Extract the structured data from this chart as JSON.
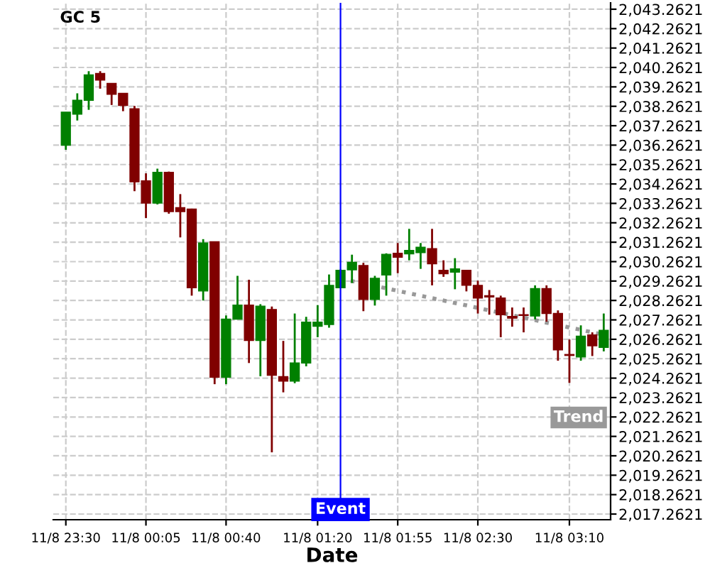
{
  "chart_data": {
    "type": "candlestick",
    "title": "GC 5",
    "xlabel": "Date",
    "categories": [
      "11/8 23:30",
      null,
      null,
      null,
      null,
      null,
      null,
      "11/8 00:05",
      null,
      null,
      null,
      null,
      null,
      null,
      "11/8 00:40",
      null,
      null,
      null,
      null,
      null,
      null,
      null,
      "11/8 01:20",
      null,
      null,
      null,
      null,
      null,
      null,
      "11/8 01:55",
      null,
      null,
      null,
      null,
      null,
      null,
      "11/8 02:30",
      null,
      null,
      null,
      null,
      null,
      null,
      null,
      "11/8 03:10",
      null,
      null,
      null
    ],
    "ohlc": [
      [
        2036.26,
        2037.96,
        2036.02,
        2037.96
      ],
      [
        2037.86,
        2038.93,
        2037.53,
        2038.57
      ],
      [
        2038.57,
        2040.07,
        2038.08,
        2039.88
      ],
      [
        2039.95,
        2040.07,
        2039.17,
        2039.61
      ],
      [
        2039.44,
        2039.44,
        2038.33,
        2038.88
      ],
      [
        2038.93,
        2038.93,
        2038.01,
        2038.3
      ],
      [
        2038.13,
        2038.28,
        2033.89,
        2034.37
      ],
      [
        2034.42,
        2034.81,
        2032.51,
        2033.28
      ],
      [
        2033.28,
        2035.05,
        2033.21,
        2034.86
      ],
      [
        2034.86,
        2034.9,
        2032.73,
        2032.84
      ],
      [
        2033.04,
        2033.74,
        2031.51,
        2032.84
      ],
      [
        2032.97,
        2032.99,
        2028.51,
        2028.92
      ],
      [
        2028.75,
        2031.42,
        2028.26,
        2031.22
      ],
      [
        2031.29,
        2031.29,
        2023.95,
        2024.31
      ],
      [
        2024.31,
        2027.49,
        2023.95,
        2027.3
      ],
      [
        2027.3,
        2029.53,
        2027.3,
        2028.02
      ],
      [
        2028.02,
        2029.33,
        2025.04,
        2026.2
      ],
      [
        2026.2,
        2028.07,
        2024.36,
        2027.97
      ],
      [
        2027.8,
        2027.95,
        2020.44,
        2024.41
      ],
      [
        2024.34,
        2026.18,
        2023.53,
        2024.11
      ],
      [
        2024.11,
        2027.59,
        2024.0,
        2025.04
      ],
      [
        2025.04,
        2027.42,
        2024.87,
        2027.15
      ],
      [
        2026.93,
        2028.02,
        2026.37,
        2027.15
      ],
      [
        2027.02,
        2029.6,
        2026.86,
        2029.04
      ],
      [
        2028.92,
        2029.86,
        2028.9,
        2029.82
      ],
      [
        2029.84,
        2030.62,
        2029.16,
        2030.23
      ],
      [
        2030.06,
        2030.2,
        2027.71,
        2028.31
      ],
      [
        2028.31,
        2029.53,
        2028.0,
        2029.4
      ],
      [
        2029.57,
        2030.69,
        2028.51,
        2030.64
      ],
      [
        2030.69,
        2031.22,
        2029.67,
        2030.49
      ],
      [
        2030.66,
        2031.95,
        2030.33,
        2030.84
      ],
      [
        2030.73,
        2031.22,
        2029.89,
        2031.0
      ],
      [
        2030.93,
        2031.95,
        2029.04,
        2030.15
      ],
      [
        2029.82,
        2030.33,
        2029.48,
        2029.64
      ],
      [
        2029.72,
        2030.44,
        2028.84,
        2029.89
      ],
      [
        2029.82,
        2029.82,
        2028.73,
        2029.04
      ],
      [
        2029.04,
        2029.28,
        2027.59,
        2028.39
      ],
      [
        2028.51,
        2028.8,
        2027.53,
        2028.44
      ],
      [
        2028.39,
        2028.51,
        2026.37,
        2027.53
      ],
      [
        2027.44,
        2027.9,
        2026.91,
        2027.35
      ],
      [
        2027.53,
        2027.9,
        2026.62,
        2027.49
      ],
      [
        2027.46,
        2029.04,
        2027.29,
        2028.87
      ],
      [
        2028.87,
        2029.04,
        2027.17,
        2027.59
      ],
      [
        2027.59,
        2027.75,
        2025.16,
        2025.72
      ],
      [
        2025.48,
        2026.25,
        2024.02,
        2025.43
      ],
      [
        2025.35,
        2026.98,
        2025.16,
        2026.42
      ],
      [
        2026.49,
        2026.62,
        2025.4,
        2025.93
      ],
      [
        2025.84,
        2027.59,
        2025.64,
        2026.73
      ]
    ],
    "colors": [
      "#008000",
      "#008000",
      "#008000",
      "#800000",
      "#800000",
      "#800000",
      "#800000",
      "#800000",
      "#008000",
      "#800000",
      "#800000",
      "#800000",
      "#008000",
      "#800000",
      "#008000",
      "#008000",
      "#800000",
      "#008000",
      "#800000",
      "#800000",
      "#008000",
      "#008000",
      "#008000",
      "#008000",
      "#008000",
      "#008000",
      "#800000",
      "#008000",
      "#008000",
      "#800000",
      "#008000",
      "#008000",
      "#800000",
      "#800000",
      "#008000",
      "#800000",
      "#800000",
      "#800000",
      "#800000",
      "#800000",
      "#800000",
      "#008000",
      "#800000",
      "#800000",
      "#800000",
      "#008000",
      "#800000",
      "#008000"
    ],
    "series": [
      {
        "type": "line",
        "name": "Trend",
        "values": [
          null,
          null,
          null,
          null,
          null,
          null,
          null,
          null,
          null,
          null,
          null,
          null,
          null,
          null,
          null,
          null,
          null,
          null,
          null,
          null,
          null,
          null,
          null,
          null,
          2029.39,
          2029.26,
          2029.14,
          2029.01,
          2028.89,
          2028.76,
          2028.63,
          2028.51,
          2028.38,
          2028.26,
          2028.13,
          2028.01,
          2027.88,
          2027.75,
          2027.63,
          2027.5,
          2027.38,
          2027.25,
          2027.12,
          2027.0,
          2026.87,
          2026.75,
          2026.62,
          2026.5
        ],
        "color": "#999999",
        "line_style": "dotted"
      }
    ],
    "annotations": [
      "Event"
    ],
    "ylim": [
      2016.97,
      2043.59
    ],
    "yticks": [
      {
        "value": 2017.2621,
        "label": "2,017.2621"
      },
      {
        "value": 2018.2621,
        "label": "2,018.2621"
      },
      {
        "value": 2019.2621,
        "label": "2,019.2621"
      },
      {
        "value": 2020.2621,
        "label": "2,020.2621"
      },
      {
        "value": 2021.2621,
        "label": "2,021.2621"
      },
      {
        "value": 2022.2621,
        "label": "2,022.2621"
      },
      {
        "value": 2023.2621,
        "label": "2,023.2621"
      },
      {
        "value": 2024.2621,
        "label": "2,024.2621"
      },
      {
        "value": 2025.2621,
        "label": "2,025.2621"
      },
      {
        "value": 2026.2621,
        "label": "2,026.2621"
      },
      {
        "value": 2027.2621,
        "label": "2,027.2621"
      },
      {
        "value": 2028.2621,
        "label": "2,028.2621"
      },
      {
        "value": 2029.2621,
        "label": "2,029.2621"
      },
      {
        "value": 2030.2621,
        "label": "2,030.2621"
      },
      {
        "value": 2031.2621,
        "label": "2,031.2621"
      },
      {
        "value": 2032.2621,
        "label": "2,032.2621"
      },
      {
        "value": 2033.2621,
        "label": "2,033.2621"
      },
      {
        "value": 2034.2621,
        "label": "2,034.2621"
      },
      {
        "value": 2035.2621,
        "label": "2,035.2621"
      },
      {
        "value": 2036.2621,
        "label": "2,036.2621"
      },
      {
        "value": 2037.2621,
        "label": "2,037.2621"
      },
      {
        "value": 2038.2621,
        "label": "2,038.2621"
      },
      {
        "value": 2039.2621,
        "label": "2,039.2621"
      },
      {
        "value": 2040.2621,
        "label": "2,040.2621"
      },
      {
        "value": 2041.2621,
        "label": "2,041.2621"
      },
      {
        "value": 2042.2621,
        "label": "2,042.2621"
      },
      {
        "value": 2043.2621,
        "label": "2,043.2621"
      }
    ],
    "grid": true,
    "legend": false
  }
}
